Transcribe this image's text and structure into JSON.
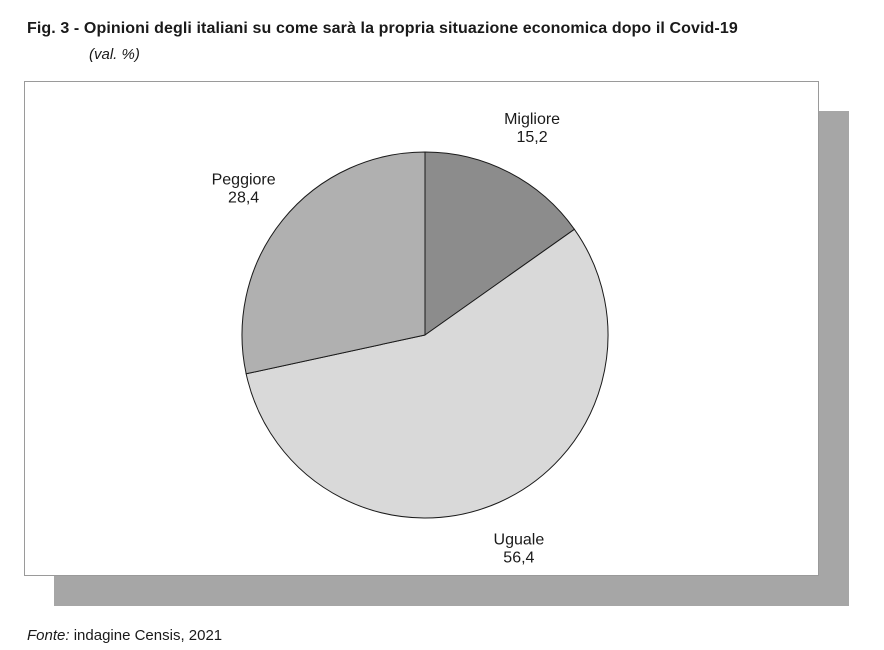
{
  "figure": {
    "title": "Fig. 3 - Opinioni degli italiani su come sarà la propria situazione economica dopo il Covid-19",
    "subtitle": "(val. %)"
  },
  "source": {
    "prefix": "Fonte:",
    "text": "indagine Censis, 2021"
  },
  "chart_data": {
    "type": "pie",
    "title": "Opinioni degli italiani su come sarà la propria situazione economica dopo il Covid-19",
    "unit": "val. %",
    "start_angle_deg": 0,
    "direction": "clockwise",
    "slices": [
      {
        "label": "Migliore",
        "value": 15.2,
        "display": "15,2",
        "color": "#8c8c8c"
      },
      {
        "label": "Uguale",
        "value": 56.4,
        "display": "56,4",
        "color": "#d9d9d9"
      },
      {
        "label": "Peggiore",
        "value": 28.4,
        "display": "28,4",
        "color": "#b0b0b0"
      }
    ],
    "stroke_color": "#1a1a1a",
    "legend": "none"
  }
}
